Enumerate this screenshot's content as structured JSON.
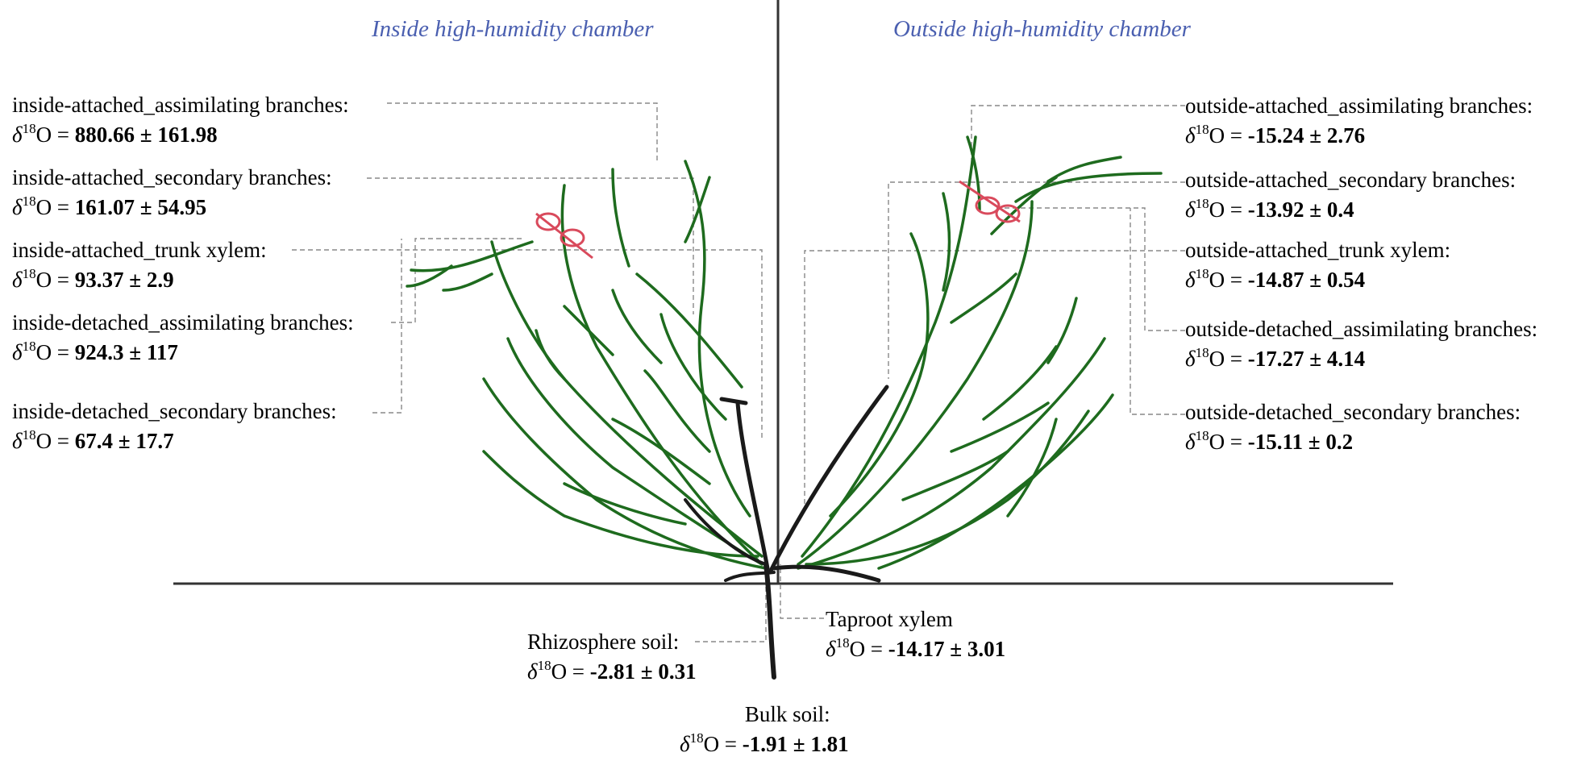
{
  "panels": {
    "inside_title": "Inside high-humidity chamber",
    "outside_title": "Outside high-humidity chamber"
  },
  "value_prefix": {
    "delta": "δ",
    "sup": "18",
    "species": "O = "
  },
  "labels": {
    "in_att_assim": {
      "name": "inside-attached_assimilating branches:",
      "value": "880.66 ± 161.98"
    },
    "in_att_sec": {
      "name": "inside-attached_secondary branches:",
      "value": "161.07 ± 54.95"
    },
    "in_att_trunk": {
      "name": "inside-attached_trunk xylem:",
      "value": "93.37 ± 2.9"
    },
    "in_det_assim": {
      "name": "inside-detached_assimilating branches:",
      "value": "924.3 ± 117"
    },
    "in_det_sec": {
      "name": "inside-detached_secondary branches:",
      "value": "67.4 ± 17.7"
    },
    "out_att_assim": {
      "name": "outside-attached_assimilating branches:",
      "value": "-15.24 ± 2.76"
    },
    "out_att_sec": {
      "name": "outside-attached_secondary branches:",
      "value": "-13.92 ± 0.4"
    },
    "out_att_trunk": {
      "name": "outside-attached_trunk xylem:",
      "value": "-14.87 ± 0.54"
    },
    "out_det_assim": {
      "name": "outside-detached_assimilating branches:",
      "value": "-17.27 ± 4.14"
    },
    "out_det_sec": {
      "name": "outside-detached_secondary branches:",
      "value": "-15.11 ± 0.2"
    },
    "taproot": {
      "name": "Taproot xylem",
      "value": "-14.17 ± 3.01"
    },
    "rhizo": {
      "name": "Rhizosphere soil:",
      "value": "-2.81 ± 0.31"
    },
    "bulk": {
      "name": "Bulk soil:",
      "value": "-1.91 ± 1.81"
    }
  },
  "colors": {
    "title": "#4a5fb0",
    "foliage": "#1e6b1e",
    "stem": "#1a1a1a",
    "tie": "#d94a5c",
    "leader": "#888888"
  }
}
